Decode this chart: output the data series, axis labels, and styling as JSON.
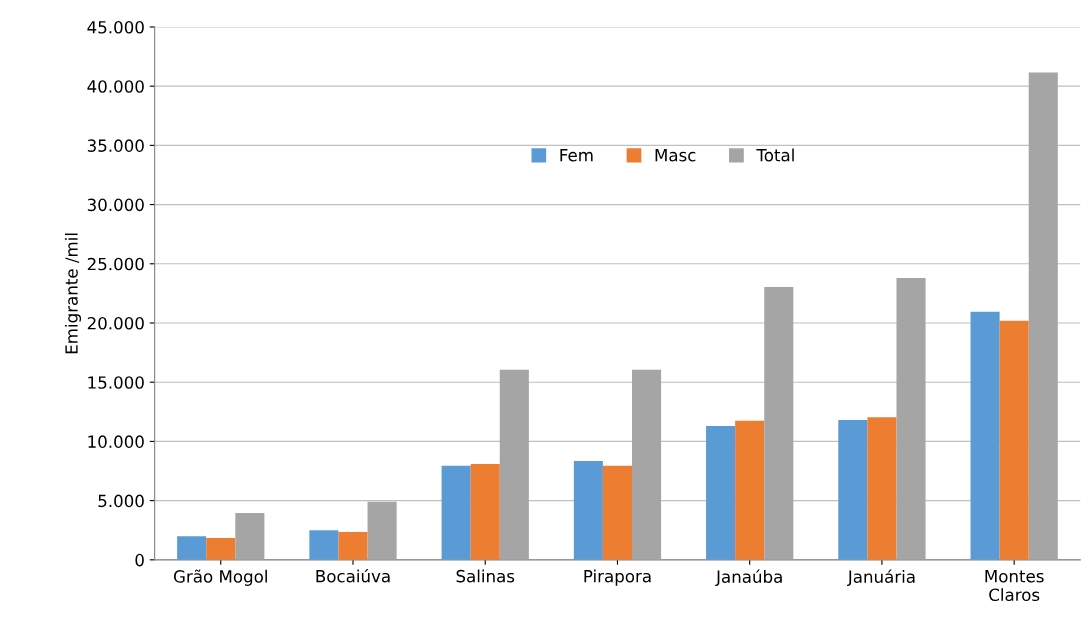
{
  "chart_data": {
    "type": "bar",
    "ylabel": "Emigrante /mil",
    "categories": [
      "Grão Mogol",
      "Bocaiúva",
      "Salinas",
      "Pirapora",
      "Janaúba",
      "Januária",
      "Montes\nClaros"
    ],
    "series": [
      {
        "name": "Fem",
        "color": "#5b9bd5",
        "values": [
          2000,
          2500,
          7950,
          8350,
          11300,
          11800,
          20950
        ]
      },
      {
        "name": "Masc",
        "color": "#ed7d31",
        "values": [
          1850,
          2350,
          8100,
          7950,
          11750,
          12050,
          20200
        ]
      },
      {
        "name": "Total",
        "color": "#a5a5a5",
        "values": [
          3950,
          4900,
          16050,
          16050,
          23050,
          23800,
          41150
        ]
      }
    ],
    "ylim": [
      0,
      45000
    ],
    "yticks": [
      {
        "value": 0,
        "label": "0"
      },
      {
        "value": 5000,
        "label": "5.000"
      },
      {
        "value": 10000,
        "label": "10.000"
      },
      {
        "value": 15000,
        "label": "15.000"
      },
      {
        "value": 20000,
        "label": "20.000"
      },
      {
        "value": 25000,
        "label": "25.000"
      },
      {
        "value": 30000,
        "label": "30.000"
      },
      {
        "value": 35000,
        "label": "35.000"
      },
      {
        "value": 40000,
        "label": "40.000"
      },
      {
        "value": 45000,
        "label": "45.000"
      }
    ],
    "grid": "y",
    "legend": "top"
  }
}
